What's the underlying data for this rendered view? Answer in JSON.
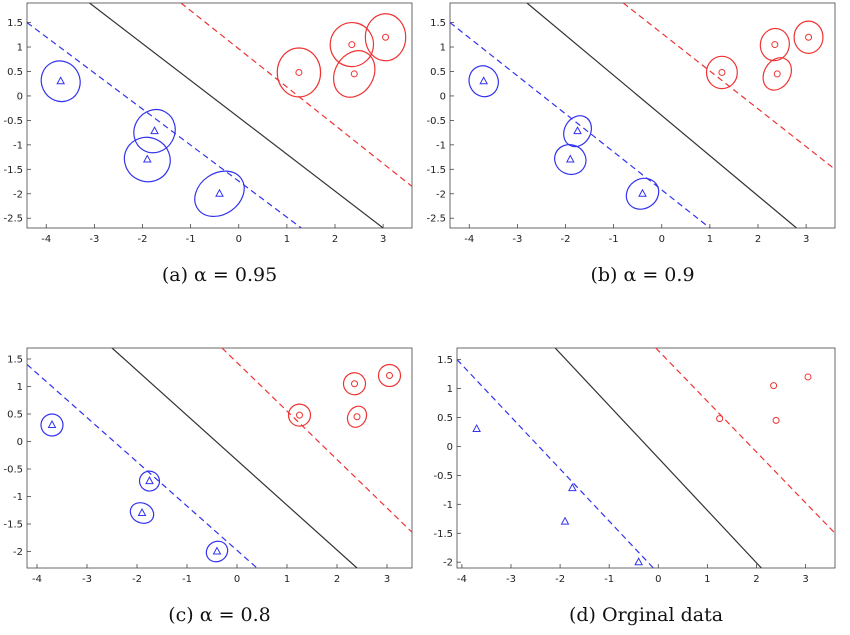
{
  "chart_data": [
    {
      "type": "scatter",
      "caption": "(a) α = 0.95",
      "xlim": [
        -4.4,
        3.6
      ],
      "ylim": [
        -2.7,
        1.9
      ],
      "xticks": [
        -4,
        -3,
        -2,
        -1,
        0,
        1,
        2,
        3
      ],
      "yticks": [
        -2.5,
        -2,
        -1.5,
        -1,
        -0.5,
        0,
        0.5,
        1,
        1.5
      ],
      "series": [
        {
          "color": "#3333ee",
          "marker": "triangle",
          "x": [
            -3.7,
            -1.75,
            -1.9,
            -0.4
          ],
          "y": [
            0.3,
            -0.72,
            -1.3,
            -2.0
          ],
          "ellipse_rx": [
            0.4,
            0.42,
            0.48,
            0.55
          ],
          "ellipse_ry": [
            0.42,
            0.45,
            0.45,
            0.42
          ],
          "ellipse_angle": [
            -25,
            30,
            25,
            -35
          ]
        },
        {
          "color": "#ee3333",
          "marker": "circle",
          "x": [
            1.25,
            2.35,
            2.4,
            3.05
          ],
          "y": [
            0.48,
            1.05,
            0.45,
            1.2
          ],
          "ellipse_rx": [
            0.45,
            0.45,
            0.4,
            0.42
          ],
          "ellipse_ry": [
            0.5,
            0.45,
            0.5,
            0.48
          ],
          "ellipse_angle": [
            0,
            10,
            30,
            0
          ]
        }
      ],
      "lines": [
        {
          "color": "#333333",
          "dash": false,
          "x": [
            -3.1,
            3.0
          ],
          "y": [
            1.9,
            -2.7
          ]
        },
        {
          "color": "#ee3333",
          "dash": true,
          "x": [
            -1.2,
            3.6
          ],
          "y": [
            1.9,
            -1.85
          ]
        },
        {
          "color": "#3333ee",
          "dash": true,
          "x": [
            -4.4,
            1.3
          ],
          "y": [
            1.5,
            -2.7
          ]
        }
      ]
    },
    {
      "type": "scatter",
      "caption": "(b) α = 0.9",
      "xlim": [
        -4.4,
        3.6
      ],
      "ylim": [
        -2.7,
        1.9
      ],
      "xticks": [
        -4,
        -3,
        -2,
        -1,
        0,
        1,
        2,
        3
      ],
      "yticks": [
        -2.5,
        -2,
        -1.5,
        -1,
        -0.5,
        0,
        0.5,
        1,
        1.5
      ],
      "series": [
        {
          "color": "#3333ee",
          "marker": "triangle",
          "x": [
            -3.7,
            -1.75,
            -1.9,
            -0.4
          ],
          "y": [
            0.3,
            -0.72,
            -1.3,
            -2.0
          ],
          "ellipse_rx": [
            0.3,
            0.27,
            0.33,
            0.35
          ],
          "ellipse_ry": [
            0.32,
            0.33,
            0.3,
            0.3
          ],
          "ellipse_angle": [
            -25,
            30,
            25,
            -35
          ]
        },
        {
          "color": "#ee3333",
          "marker": "circle",
          "x": [
            1.25,
            2.35,
            2.4,
            3.05
          ],
          "y": [
            0.48,
            1.05,
            0.45,
            1.2
          ],
          "ellipse_rx": [
            0.32,
            0.3,
            0.27,
            0.3
          ],
          "ellipse_ry": [
            0.33,
            0.33,
            0.35,
            0.33
          ],
          "ellipse_angle": [
            0,
            10,
            30,
            0
          ]
        }
      ],
      "lines": [
        {
          "color": "#333333",
          "dash": false,
          "x": [
            -2.8,
            2.8
          ],
          "y": [
            1.9,
            -2.7
          ]
        },
        {
          "color": "#ee3333",
          "dash": true,
          "x": [
            -0.8,
            3.6
          ],
          "y": [
            1.9,
            -1.5
          ]
        },
        {
          "color": "#3333ee",
          "dash": true,
          "x": [
            -4.4,
            1.0
          ],
          "y": [
            1.5,
            -2.7
          ]
        }
      ]
    },
    {
      "type": "scatter",
      "caption": "(c) α = 0.8",
      "xlim": [
        -4.2,
        3.5
      ],
      "ylim": [
        -2.3,
        1.7
      ],
      "xticks": [
        -4,
        -3,
        -2,
        -1,
        0,
        1,
        2,
        3
      ],
      "yticks": [
        -2,
        -1.5,
        -1,
        -0.5,
        0,
        0.5,
        1,
        1.5
      ],
      "series": [
        {
          "color": "#3333ee",
          "marker": "triangle",
          "x": [
            -3.7,
            -1.75,
            -1.9,
            -0.4
          ],
          "y": [
            0.3,
            -0.72,
            -1.3,
            -2.0
          ],
          "ellipse_rx": [
            0.22,
            0.2,
            0.24,
            0.22
          ],
          "ellipse_ry": [
            0.2,
            0.18,
            0.18,
            0.18
          ],
          "ellipse_angle": [
            -25,
            30,
            25,
            -35
          ]
        },
        {
          "color": "#ee3333",
          "marker": "circle",
          "x": [
            1.25,
            2.35,
            2.4,
            3.05
          ],
          "y": [
            0.48,
            1.05,
            0.45,
            1.2
          ],
          "ellipse_rx": [
            0.22,
            0.22,
            0.18,
            0.22
          ],
          "ellipse_ry": [
            0.2,
            0.2,
            0.2,
            0.2
          ],
          "ellipse_angle": [
            0,
            10,
            30,
            0
          ]
        }
      ],
      "lines": [
        {
          "color": "#333333",
          "dash": false,
          "x": [
            -2.5,
            2.4
          ],
          "y": [
            1.7,
            -2.3
          ]
        },
        {
          "color": "#ee3333",
          "dash": true,
          "x": [
            -0.3,
            3.5
          ],
          "y": [
            1.7,
            -1.65
          ]
        },
        {
          "color": "#3333ee",
          "dash": true,
          "x": [
            -4.2,
            0.4
          ],
          "y": [
            1.4,
            -2.3
          ]
        }
      ]
    },
    {
      "type": "scatter",
      "caption": "(d) Orginal data",
      "xlim": [
        -4.1,
        3.6
      ],
      "ylim": [
        -2.1,
        1.7
      ],
      "xticks": [
        -4,
        -3,
        -2,
        -1,
        0,
        1,
        2,
        3
      ],
      "yticks": [
        -2,
        -1.5,
        -1,
        -0.5,
        0,
        0.5,
        1,
        1.5
      ],
      "series": [
        {
          "color": "#3333ee",
          "marker": "triangle",
          "x": [
            -3.7,
            -1.75,
            -1.9,
            -0.4
          ],
          "y": [
            0.3,
            -0.72,
            -1.3,
            -2.0
          ]
        },
        {
          "color": "#ee3333",
          "marker": "circle",
          "x": [
            1.25,
            2.35,
            2.4,
            3.05
          ],
          "y": [
            0.48,
            1.05,
            0.45,
            1.2
          ]
        }
      ],
      "lines": [
        {
          "color": "#333333",
          "dash": false,
          "x": [
            -2.1,
            2.1
          ],
          "y": [
            1.7,
            -2.1
          ]
        },
        {
          "color": "#ee3333",
          "dash": true,
          "x": [
            -0.05,
            3.6
          ],
          "y": [
            1.7,
            -1.5
          ]
        },
        {
          "color": "#3333ee",
          "dash": true,
          "x": [
            -4.1,
            -0.1
          ],
          "y": [
            1.5,
            -2.1
          ]
        }
      ]
    }
  ]
}
